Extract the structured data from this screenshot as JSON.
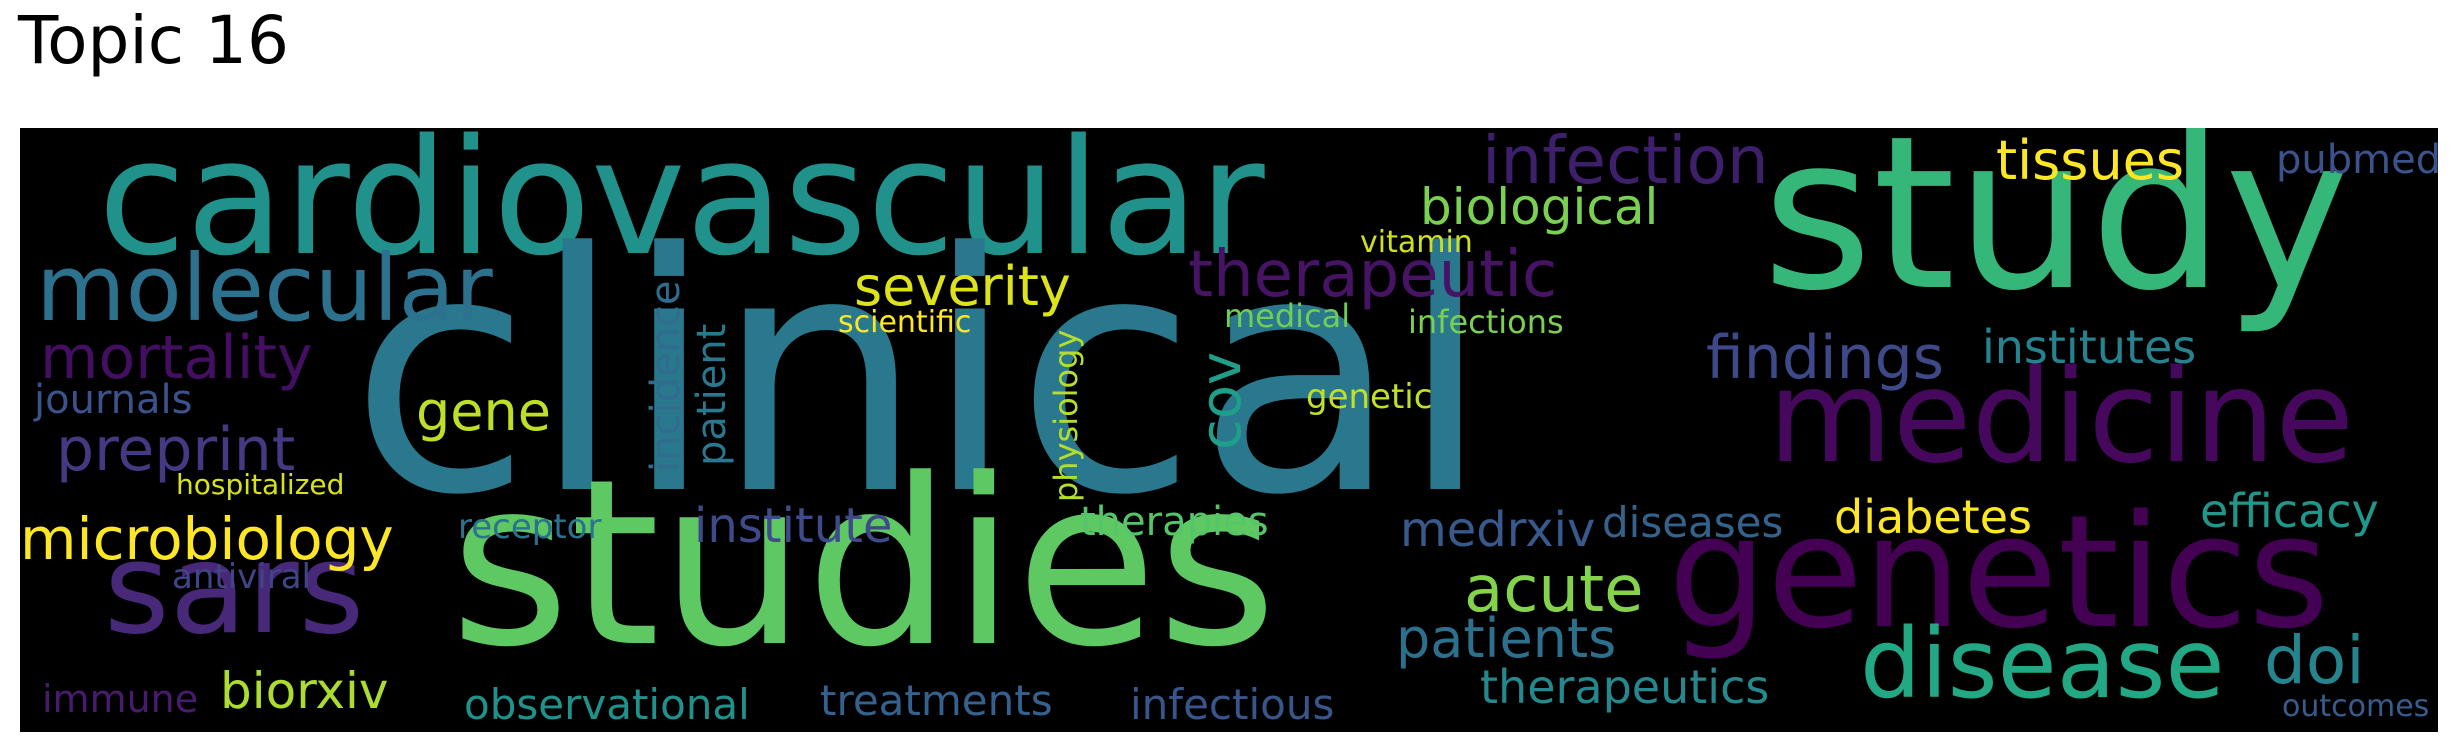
{
  "title": "Topic 16",
  "cloud": {
    "background": "#000000",
    "words": {
      "clinical": {
        "text": "clinical",
        "color": "#2a788e"
      },
      "studies": {
        "text": "studies",
        "color": "#5ec962"
      },
      "study": {
        "text": "study",
        "color": "#35b779"
      },
      "cardiovascular": {
        "text": "cardiovascular",
        "color": "#21918c"
      },
      "genetics": {
        "text": "genetics",
        "color": "#440154"
      },
      "medicine": {
        "text": "medicine",
        "color": "#46085c"
      },
      "sars": {
        "text": "sars",
        "color": "#482878"
      },
      "disease": {
        "text": "disease",
        "color": "#22a884"
      },
      "molecular": {
        "text": "molecular",
        "color": "#2c728e"
      },
      "infection": {
        "text": "infection",
        "color": "#3e1f6c"
      },
      "therapeutic": {
        "text": "therapeutic",
        "color": "#471365"
      },
      "severity": {
        "text": "severity",
        "color": "#dde318"
      },
      "biological": {
        "text": "biological",
        "color": "#7ad151"
      },
      "tissues": {
        "text": "tissues",
        "color": "#fde725"
      },
      "pubmed": {
        "text": "pubmed",
        "color": "#3b528b"
      },
      "mortality": {
        "text": "mortality",
        "color": "#440f62"
      },
      "findings": {
        "text": "findings",
        "color": "#3e4989"
      },
      "institutes": {
        "text": "institutes",
        "color": "#26828e"
      },
      "gene": {
        "text": "gene",
        "color": "#bddf26"
      },
      "cov": {
        "text": "cov",
        "color": "#1f9e89"
      },
      "preprint": {
        "text": "preprint",
        "color": "#443a83"
      },
      "journals": {
        "text": "journals",
        "color": "#3b528b"
      },
      "microbiology": {
        "text": "microbiology",
        "color": "#fde725"
      },
      "acute": {
        "text": "acute",
        "color": "#84d44b"
      },
      "patients": {
        "text": "patients",
        "color": "#2d708e"
      },
      "doi": {
        "text": "doi",
        "color": "#25858e"
      },
      "diabetes": {
        "text": "diabetes",
        "color": "#fde725"
      },
      "efficacy": {
        "text": "efficacy",
        "color": "#1f988b"
      },
      "institute": {
        "text": "institute",
        "color": "#3e4a89"
      },
      "medrxiv": {
        "text": "medrxiv",
        "color": "#38598c"
      },
      "diseases": {
        "text": "diseases",
        "color": "#33638d"
      },
      "therapies": {
        "text": "therapies",
        "color": "#54c568"
      },
      "receptor": {
        "text": "receptor",
        "color": "#2c728e"
      },
      "antiviral": {
        "text": "antiviral",
        "color": "#414487"
      },
      "immune": {
        "text": "immune",
        "color": "#481b6d"
      },
      "biorxiv": {
        "text": "biorxiv",
        "color": "#addc30"
      },
      "observational": {
        "text": "observational",
        "color": "#20928c"
      },
      "treatments": {
        "text": "treatments",
        "color": "#34618d"
      },
      "infectious": {
        "text": "infectious",
        "color": "#39568c"
      },
      "therapeutics": {
        "text": "therapeutics",
        "color": "#23898e"
      },
      "outcomes": {
        "text": "outcomes",
        "color": "#365d8d"
      },
      "hospitalized": {
        "text": "hospitalized",
        "color": "#d8e219"
      },
      "scientific": {
        "text": "scientific",
        "color": "#fde725"
      },
      "vitamin": {
        "text": "vitamin",
        "color": "#d0e11c"
      },
      "medical": {
        "text": "medical",
        "color": "#6ece58"
      },
      "infections": {
        "text": "infections",
        "color": "#7ad151"
      },
      "genetic": {
        "text": "genetic",
        "color": "#c2df23"
      },
      "incidence": {
        "text": "incidence",
        "color": "#2f6c8e"
      },
      "patient": {
        "text": "patient",
        "color": "#2a788e"
      },
      "physiology": {
        "text": "physiology",
        "color": "#b5de2b"
      }
    }
  }
}
